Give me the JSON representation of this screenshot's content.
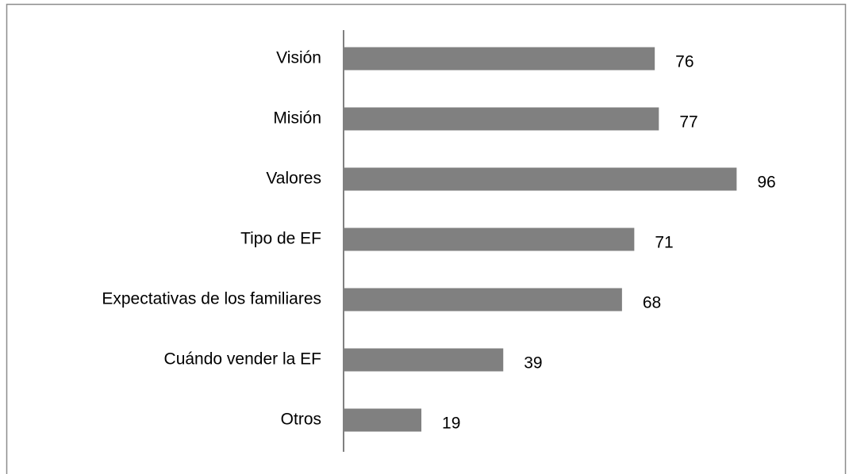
{
  "chart_data": {
    "type": "bar",
    "orientation": "horizontal",
    "categories": [
      "Visión",
      "Misión",
      "Valores",
      "Tipo de EF",
      "Expectativas de los familiares",
      "Cuándo vender la EF",
      "Otros"
    ],
    "values": [
      76,
      77,
      96,
      71,
      68,
      39,
      19
    ],
    "color": "#808080"
  }
}
